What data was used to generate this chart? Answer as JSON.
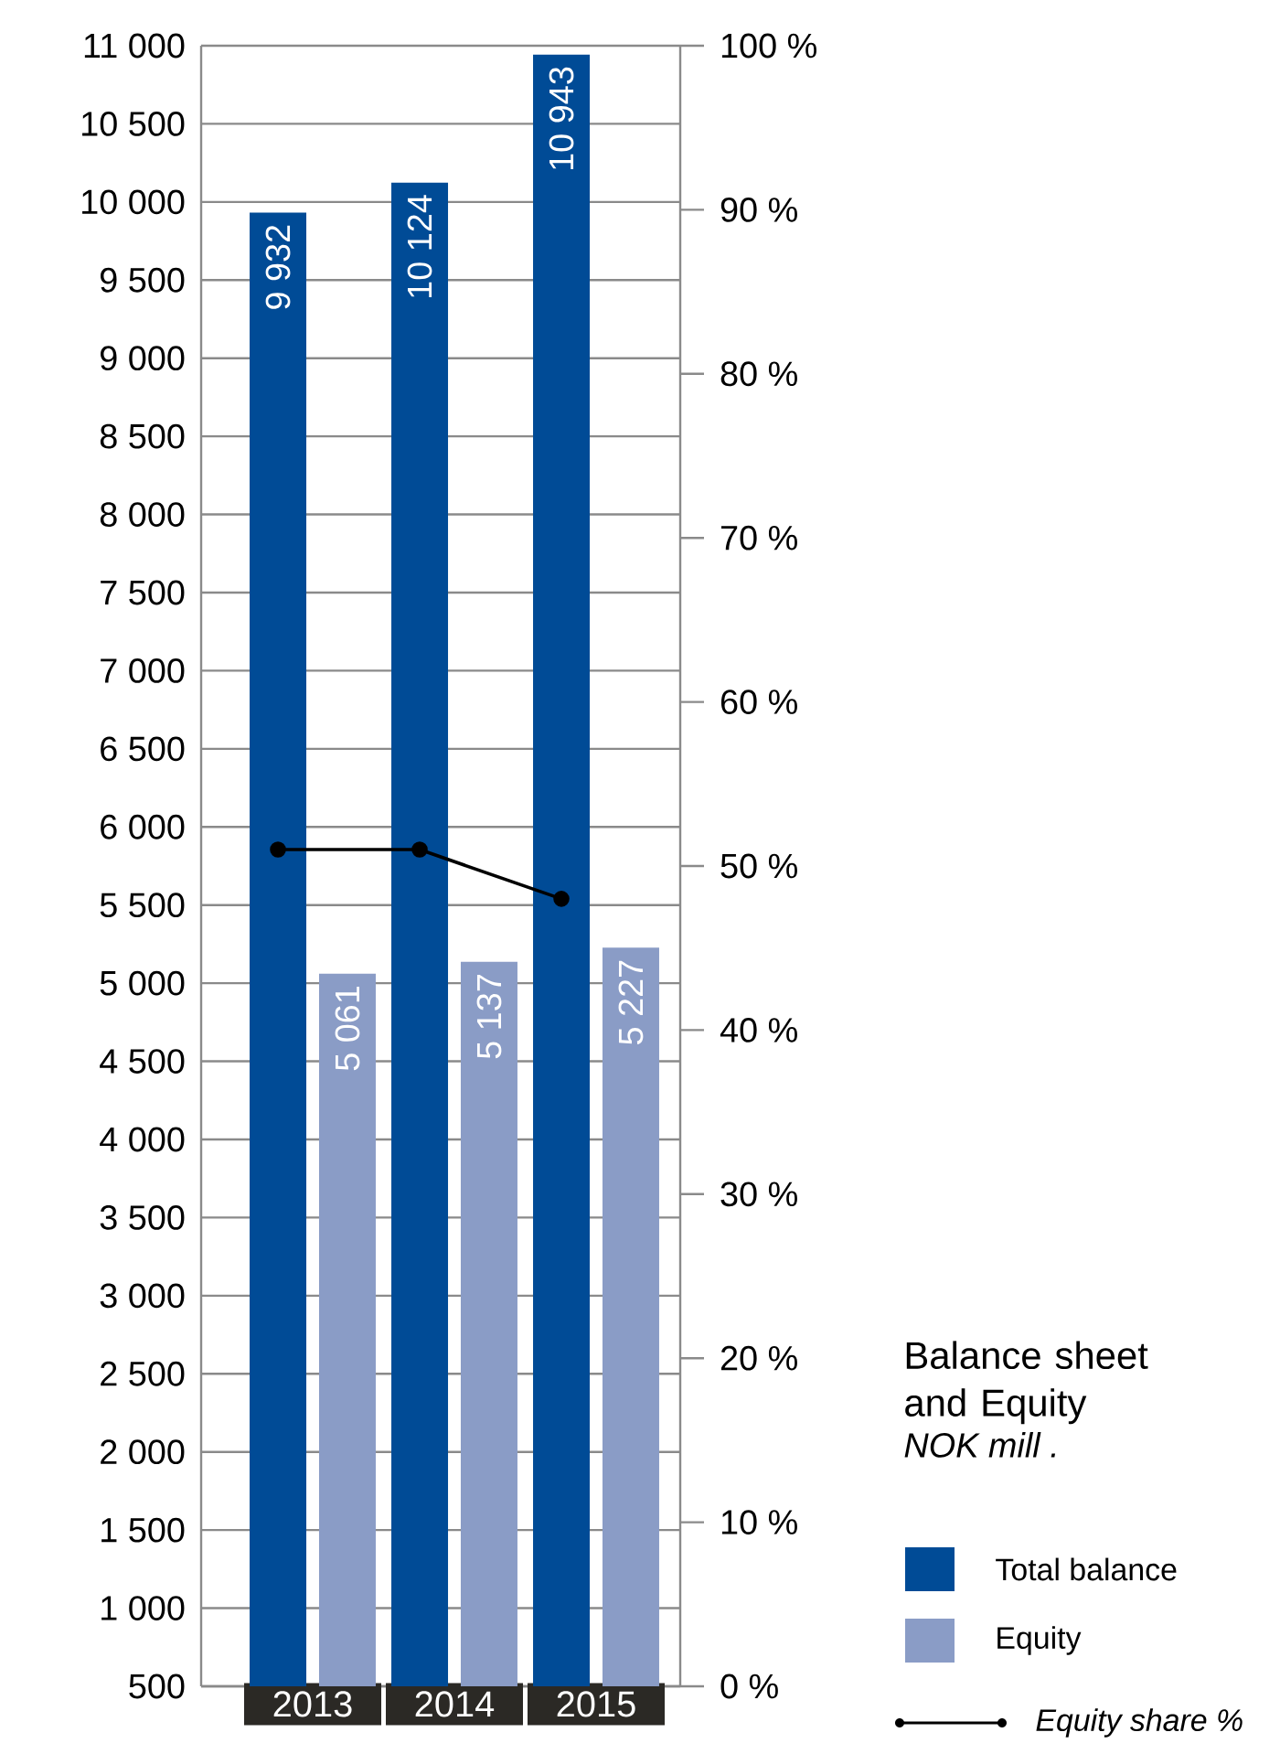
{
  "chart_data": {
    "type": "bar",
    "title": "Balance sheet and Equity",
    "subtitle": "NOK mill .",
    "categories": [
      "2013",
      "2014",
      "2015"
    ],
    "series": [
      {
        "name": "Total balance",
        "color": "#004b96",
        "values": [
          9932,
          10124,
          10943
        ],
        "value_labels": [
          "9 932",
          "10 124",
          "10 943"
        ]
      },
      {
        "name": "Equity",
        "color": "#8a9cc6",
        "values": [
          5061,
          5137,
          5227
        ],
        "value_labels": [
          "5 061",
          "5 137",
          "5 227"
        ]
      },
      {
        "name": "Equity share %",
        "type": "line",
        "axis": "y2",
        "color": "#000000",
        "marker": "circle",
        "values": [
          51,
          51,
          48
        ]
      }
    ],
    "ylim": [
      500,
      11000
    ],
    "yticks": [
      500,
      {
        "value": 1000,
        "label": "1 000"
      },
      {
        "value": 1500,
        "label": "1 500"
      },
      {
        "value": 2000,
        "label": "2 000"
      },
      {
        "value": 2500,
        "label": "2 500"
      },
      {
        "value": 3000,
        "label": "3 000"
      },
      {
        "value": 3500,
        "label": "3 500"
      },
      {
        "value": 4000,
        "label": "4 000"
      },
      {
        "value": 4500,
        "label": "4 500"
      },
      {
        "value": 5000,
        "label": "5 000"
      },
      {
        "value": 5500,
        "label": "5 500"
      },
      {
        "value": 6000,
        "label": "6 000"
      },
      {
        "value": 6500,
        "label": "6 500"
      },
      {
        "value": 7000,
        "label": "7 000"
      },
      {
        "value": 7500,
        "label": "7 500"
      },
      {
        "value": 8000,
        "label": "8 000"
      },
      {
        "value": 8500,
        "label": "8 500"
      },
      {
        "value": 9000,
        "label": "9 000"
      },
      {
        "value": 9500,
        "label": "9 500"
      },
      {
        "value": 10000,
        "label": "10 000"
      },
      {
        "value": 10500,
        "label": "10 500"
      },
      {
        "value": 11000,
        "label": "11 000"
      }
    ],
    "y2lim": [
      0,
      100
    ],
    "y2ticks": [
      {
        "value": 0,
        "label": "0 %"
      },
      {
        "value": 10,
        "label": "10 %"
      },
      {
        "value": 20,
        "label": "20 %"
      },
      {
        "value": 30,
        "label": "30 %"
      },
      {
        "value": 40,
        "label": "40 %"
      },
      {
        "value": 50,
        "label": "50 %"
      },
      {
        "value": 60,
        "label": "60 %"
      },
      {
        "value": 70,
        "label": "70 %"
      },
      {
        "value": 80,
        "label": "80 %"
      },
      {
        "value": 90,
        "label": "90 %"
      },
      {
        "value": 100,
        "label": "100 %"
      }
    ],
    "grid": "y",
    "legend": "bottom right"
  }
}
